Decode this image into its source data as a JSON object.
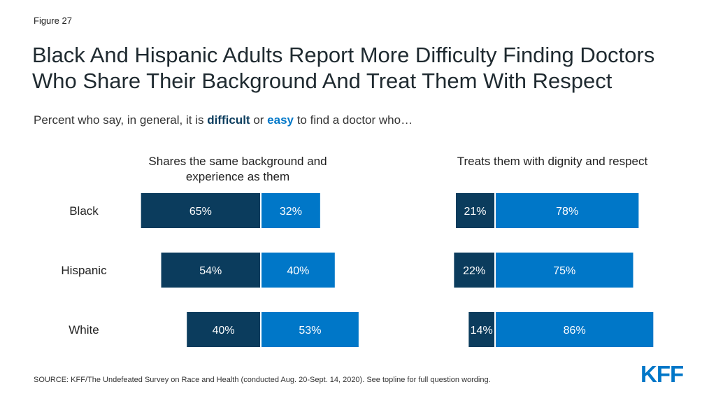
{
  "figure_label": "Figure 27",
  "title": "Black And Hispanic Adults Report More Difficulty Finding Doctors Who Share Their Background And Treat Them With Respect",
  "subtitle": {
    "prefix": "Percent who say, in general, it is ",
    "difficult": "difficult",
    "middle": " or ",
    "easy": "easy",
    "suffix": " to find a doctor who…"
  },
  "colors": {
    "difficult": "#0b3c5d",
    "easy": "#0077c8"
  },
  "chart_data": [
    {
      "type": "bar",
      "title": "Shares the same background and experience as them",
      "categories": [
        "Black",
        "Hispanic",
        "White"
      ],
      "series": [
        {
          "name": "difficult",
          "values": [
            65,
            54,
            40
          ]
        },
        {
          "name": "easy",
          "values": [
            32,
            40,
            53
          ]
        }
      ]
    },
    {
      "type": "bar",
      "title": "Treats them with dignity and respect",
      "categories": [
        "Black",
        "Hispanic",
        "White"
      ],
      "series": [
        {
          "name": "difficult",
          "values": [
            21,
            22,
            14
          ]
        },
        {
          "name": "easy",
          "values": [
            78,
            75,
            86
          ]
        }
      ]
    }
  ],
  "source": "SOURCE: KFF/The Undefeated Survey on Race and Health (conducted Aug. 20-Sept. 14, 2020). See topline for full question wording.",
  "logo_text": "KFF"
}
